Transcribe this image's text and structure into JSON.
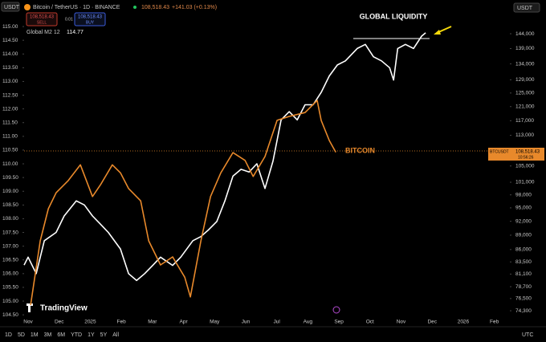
{
  "chart_data": {
    "type": "line",
    "title": "Bitcoin / TetherUS · 1D · BINANCE",
    "header": {
      "quote": "USDT",
      "price": "108,518.43",
      "change": "+141.03 (+0.13%)",
      "sell_price": "108,518.43",
      "sell": "SELL",
      "spread": "0.01",
      "buy_price": "108,518.43",
      "buy": "BUY",
      "scale_currency": "USDT"
    },
    "annotation": "GLOBAL LIQUIDITY",
    "price_tag": {
      "symbol": "BTCUSDT",
      "price": "108,518.43",
      "countdown": "10:56:26"
    },
    "brand": "TradingView",
    "toolbar": {
      "ranges": [
        "1D",
        "5D",
        "1M",
        "3M",
        "6M",
        "YTD",
        "1Y",
        "5Y",
        "All"
      ],
      "timezone": "UTC"
    },
    "xlim": [
      -0.13,
      15.5
    ],
    "xticks": [
      {
        "value": 0,
        "label": "Nov"
      },
      {
        "value": 1,
        "label": "Dec"
      },
      {
        "value": 2,
        "label": "2025"
      },
      {
        "value": 3,
        "label": "Feb"
      },
      {
        "value": 4,
        "label": "Mar"
      },
      {
        "value": 5,
        "label": "Apr"
      },
      {
        "value": 6,
        "label": "May"
      },
      {
        "value": 7,
        "label": "Jun"
      },
      {
        "value": 8,
        "label": "Jul"
      },
      {
        "value": 9,
        "label": "Aug"
      },
      {
        "value": 10,
        "label": "Sep"
      },
      {
        "value": 11,
        "label": "Oct"
      },
      {
        "value": 12,
        "label": "Nov"
      },
      {
        "value": 13,
        "label": "Dec"
      },
      {
        "value": 14,
        "label": "2026"
      },
      {
        "value": 15,
        "label": "Feb"
      }
    ],
    "ylim": [
      104.27,
      115.44
    ],
    "yticks": [
      {
        "value": 115,
        "label": "115.00"
      },
      {
        "value": 114.5,
        "label": "114.50"
      },
      {
        "value": 114,
        "label": "114.00"
      },
      {
        "value": 113.5,
        "label": "113.50"
      },
      {
        "value": 113,
        "label": "113.00"
      },
      {
        "value": 112.5,
        "label": "112.50"
      },
      {
        "value": 112,
        "label": "112.00"
      },
      {
        "value": 111.5,
        "label": "111.50"
      },
      {
        "value": 111,
        "label": "111.00"
      },
      {
        "value": 110.5,
        "label": "110.50"
      },
      {
        "value": 110,
        "label": "110.00"
      },
      {
        "value": 109.5,
        "label": "109.50"
      },
      {
        "value": 109,
        "label": "109.00"
      },
      {
        "value": 108.5,
        "label": "108.50"
      },
      {
        "value": 108,
        "label": "108.00"
      },
      {
        "value": 107.5,
        "label": "107.50"
      },
      {
        "value": 107,
        "label": "107.00"
      },
      {
        "value": 106.5,
        "label": "106.50"
      },
      {
        "value": 106,
        "label": "106.00"
      },
      {
        "value": 105.5,
        "label": "105.50"
      },
      {
        "value": 105,
        "label": "105.00"
      },
      {
        "value": 104.5,
        "label": "104.50"
      }
    ],
    "y2lim": [
      72480,
      150800
    ],
    "y2_log": true,
    "y2ticks": [
      {
        "value": 144000,
        "label": "144,000"
      },
      {
        "value": 139000,
        "label": "139,000"
      },
      {
        "value": 134000,
        "label": "134,000"
      },
      {
        "value": 129000,
        "label": "129,000"
      },
      {
        "value": 125000,
        "label": "125,000"
      },
      {
        "value": 121000,
        "label": "121,000"
      },
      {
        "value": 117000,
        "label": "117,000"
      },
      {
        "value": 113000,
        "label": "113,000"
      },
      {
        "value": 105000,
        "label": "105,000"
      },
      {
        "value": 101000,
        "label": "101,000"
      },
      {
        "value": 98000,
        "label": "98,000"
      },
      {
        "value": 95000,
        "label": "95,000"
      },
      {
        "value": 92000,
        "label": "92,000"
      },
      {
        "value": 89000,
        "label": "89,000"
      },
      {
        "value": 86000,
        "label": "86,000"
      },
      {
        "value": 83500,
        "label": "83,500"
      },
      {
        "value": 81100,
        "label": "81,100"
      },
      {
        "value": 78700,
        "label": "78,700"
      },
      {
        "value": 76500,
        "label": "76,500"
      },
      {
        "value": 74300,
        "label": "74,300"
      }
    ],
    "grid": false,
    "series": [
      {
        "name": "Global M2 12",
        "color": "#ffffff",
        "last_label": "114.77",
        "x": [
          -0.13,
          0,
          0.26,
          0.52,
          0.9,
          1.16,
          1.55,
          1.81,
          2.07,
          2.33,
          2.58,
          2.97,
          3.23,
          3.49,
          3.75,
          4.01,
          4.26,
          4.65,
          4.91,
          5.3,
          5.56,
          5.81,
          6.07,
          6.33,
          6.59,
          6.85,
          7.11,
          7.36,
          7.62,
          7.88,
          8.14,
          8.4,
          8.66,
          8.91,
          9.17,
          9.43,
          9.69,
          9.95,
          10.21,
          10.59,
          10.85,
          11.11,
          11.37,
          11.63,
          11.76,
          11.89,
          12.14,
          12.4,
          12.66,
          12.79
        ],
        "values": [
          106.31,
          106.6,
          106.0,
          107.2,
          107.5,
          108.1,
          108.65,
          108.5,
          108.1,
          107.8,
          107.5,
          106.9,
          106.0,
          105.75,
          106.0,
          106.3,
          106.6,
          106.3,
          106.6,
          107.2,
          107.35,
          107.6,
          107.9,
          108.65,
          109.55,
          109.8,
          109.7,
          110.0,
          109.1,
          110.1,
          111.6,
          111.9,
          111.6,
          112.15,
          112.15,
          112.6,
          113.2,
          113.6,
          113.75,
          114.2,
          114.35,
          113.9,
          113.75,
          113.5,
          113.05,
          114.2,
          114.35,
          114.2,
          114.65,
          114.77
        ]
      },
      {
        "name": "BITCOIN",
        "color": "#e8892b",
        "axis": "y2",
        "x": [
          0.08,
          0.39,
          0.65,
          0.9,
          1.29,
          1.68,
          2.07,
          2.33,
          2.71,
          2.97,
          3.23,
          3.62,
          3.88,
          4.26,
          4.65,
          5.04,
          5.22,
          5.56,
          5.87,
          6.2,
          6.59,
          6.98,
          7.24,
          7.62,
          8.01,
          8.4,
          8.91,
          9.3,
          9.43,
          9.69,
          9.9
        ],
        "values": [
          75300,
          87800,
          94800,
          98500,
          101400,
          105300,
          97600,
          100400,
          105300,
          103300,
          99500,
          96600,
          87800,
          82900,
          84500,
          80500,
          76800,
          87800,
          97600,
          103300,
          108400,
          106400,
          102400,
          107400,
          117100,
          118200,
          119300,
          122800,
          117100,
          111600,
          108518.43
        ]
      }
    ]
  }
}
